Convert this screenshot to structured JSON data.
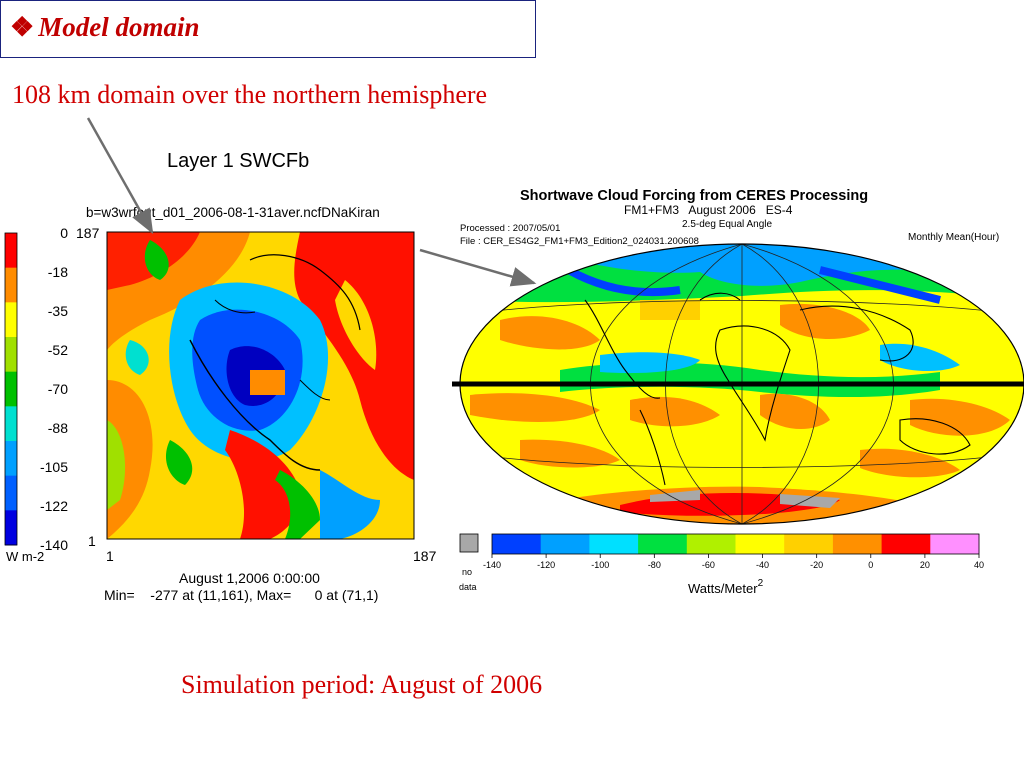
{
  "slide": {
    "title_bullet": "❖",
    "title": "Model domain",
    "domain_caption": "108 km domain over the northern hemisphere",
    "period_caption": "Simulation period: August of 2006"
  },
  "left_plot": {
    "title": "Layer 1  SWCFb",
    "file_label": "b=w3wrfout_d01_2006-08-1-31aver.ncfDNaKiran",
    "colorbar_ticks": [
      "0",
      "-18",
      "-35",
      "-52",
      "-70",
      "-88",
      "-105",
      "-122",
      "-140"
    ],
    "colorbar_colors": [
      "#ff0000",
      "#ff8c00",
      "#ffff00",
      "#a0e000",
      "#00c000",
      "#00e0d0",
      "#00a0ff",
      "#0060ff",
      "#0000e0"
    ],
    "unit_label": "W m-2",
    "y_top": "187",
    "y_bottom": "1",
    "x_left": "1",
    "x_right": "187",
    "date_label": "August 1,2006 0:00:00",
    "minmax_label": "Min=    -277 at (11,161), Max=      0 at (71,1)"
  },
  "right_plot": {
    "title_line1": "Shortwave Cloud Forcing from CERES Processing",
    "title_line2": "FM1+FM3   August 2006   ES-4",
    "title_line3": "2.5-deg Equal Angle",
    "processed_label": "Processed : 2007/05/01",
    "file_label": "File : CER_ES4G2_FM1+FM3_Edition2_024031.200608",
    "mean_label": "Monthly Mean(Hour)",
    "nodata_label_1": "no",
    "nodata_label_2": "data",
    "legend_ticks": [
      "-140",
      "-120",
      "-100",
      "-80",
      "-60",
      "-40",
      "-20",
      "0",
      "20",
      "40"
    ],
    "legend_colors": [
      "#0040ff",
      "#00a0ff",
      "#00e0ff",
      "#00e040",
      "#b0f000",
      "#ffff00",
      "#ffd000",
      "#ff9000",
      "#ff0000",
      "#ff90ff"
    ],
    "unit_label": "Watts/Meter",
    "unit_exponent": "2"
  }
}
